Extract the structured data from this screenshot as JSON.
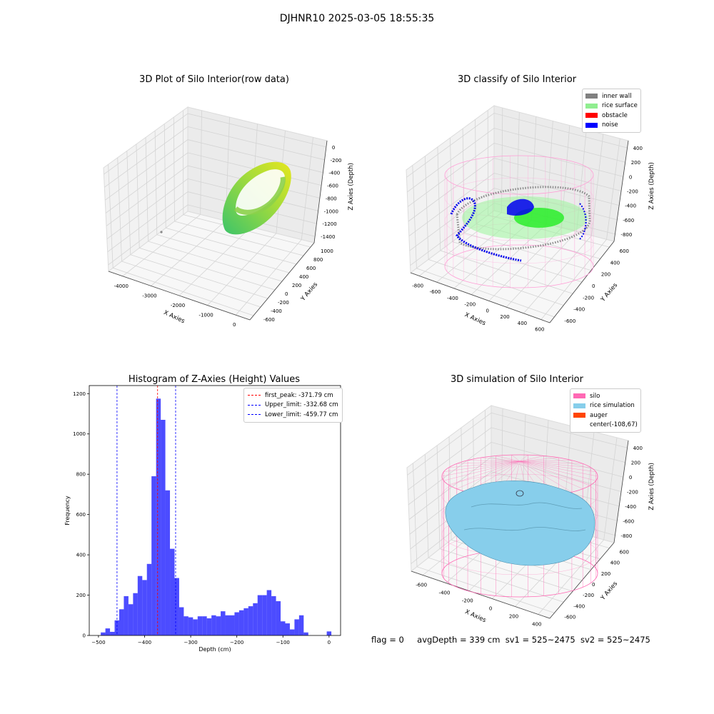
{
  "suptitle": "DJHNR10 2025-03-05 18:55:35",
  "footer": {
    "flag": "flag = 0",
    "avg_depth": "avgDepth = 339 cm",
    "sv1": "sv1 = 525~2475",
    "sv2": "sv2 = 525~2475"
  },
  "panels": {
    "raw": {
      "title": "3D Plot of Silo Interior(row data)",
      "xlabel": "X Axies",
      "ylabel": "Y Axies",
      "zlabel": "Z Axies (Depth)",
      "xticks": [
        "-4000",
        "-3000",
        "-2000",
        "-1000",
        "0"
      ],
      "yticks": [
        "-600",
        "-400",
        "-200",
        "0",
        "200",
        "400",
        "600",
        "800",
        "1000"
      ],
      "zticks": [
        "0",
        "-200",
        "-400",
        "-600",
        "-800",
        "-1000",
        "-1200",
        "-1400"
      ]
    },
    "classify": {
      "title": "3D classify of Silo Interior",
      "xlabel": "X Axies",
      "ylabel": "Y Axies",
      "zlabel": "Z Axies (Depth)",
      "xticks": [
        "-800",
        "-600",
        "-400",
        "-200",
        "0",
        "200",
        "400",
        "600"
      ],
      "yticks": [
        "-600",
        "-400",
        "-200",
        "0",
        "200",
        "400",
        "600"
      ],
      "zticks": [
        "400",
        "200",
        "0",
        "-200",
        "-400",
        "-600",
        "-800"
      ],
      "legend": [
        {
          "label": "inner wall",
          "color": "#808080"
        },
        {
          "label": "rice surface",
          "color": "#90ee90"
        },
        {
          "label": "obstacle",
          "color": "#ff0000"
        },
        {
          "label": "noise",
          "color": "#0000ff"
        }
      ]
    },
    "simulation": {
      "title": "3D simulation of Silo Interior",
      "xlabel": "X Axies",
      "ylabel": "Y Axies",
      "zlabel": "Z Axies (Depth)",
      "xticks": [
        "-600",
        "-400",
        "-200",
        "0",
        "200",
        "400"
      ],
      "yticks": [
        "-600",
        "-400",
        "-200",
        "0",
        "200",
        "400",
        "600"
      ],
      "zticks": [
        "400",
        "200",
        "0",
        "-200",
        "-400",
        "-600",
        "-800"
      ],
      "legend": [
        {
          "label": "silo",
          "color": "#ff69b4"
        },
        {
          "label": "rice simulation",
          "color": "#87ceeb"
        },
        {
          "label": "auger",
          "color": "#ff4500"
        },
        {
          "label": "center(-108,67)",
          "color": "#ffffff"
        }
      ]
    }
  },
  "chart_data": {
    "type": "bar",
    "title": "Histogram of Z-Axies (Height) Values",
    "xlabel": "Depth (cm)",
    "ylabel": "Frequency",
    "xlim": [
      -520,
      25
    ],
    "ylim": [
      0,
      1240
    ],
    "xticks": [
      -500,
      -400,
      -300,
      -200,
      -100,
      0
    ],
    "yticks": [
      0,
      200,
      400,
      600,
      800,
      1000,
      1200
    ],
    "bar_color": "#0000ff",
    "bin_width": 10,
    "bins": [
      {
        "x": -490,
        "v": 15
      },
      {
        "x": -480,
        "v": 35
      },
      {
        "x": -470,
        "v": 18
      },
      {
        "x": -460,
        "v": 75
      },
      {
        "x": -450,
        "v": 130
      },
      {
        "x": -440,
        "v": 195
      },
      {
        "x": -430,
        "v": 155
      },
      {
        "x": -420,
        "v": 210
      },
      {
        "x": -410,
        "v": 295
      },
      {
        "x": -400,
        "v": 275
      },
      {
        "x": -390,
        "v": 355
      },
      {
        "x": -380,
        "v": 790
      },
      {
        "x": -370,
        "v": 1175
      },
      {
        "x": -360,
        "v": 1070
      },
      {
        "x": -350,
        "v": 720
      },
      {
        "x": -340,
        "v": 430
      },
      {
        "x": -330,
        "v": 285
      },
      {
        "x": -320,
        "v": 140
      },
      {
        "x": -310,
        "v": 95
      },
      {
        "x": -300,
        "v": 90
      },
      {
        "x": -290,
        "v": 80
      },
      {
        "x": -280,
        "v": 95
      },
      {
        "x": -270,
        "v": 95
      },
      {
        "x": -260,
        "v": 85
      },
      {
        "x": -250,
        "v": 100
      },
      {
        "x": -240,
        "v": 95
      },
      {
        "x": -230,
        "v": 120
      },
      {
        "x": -220,
        "v": 100
      },
      {
        "x": -210,
        "v": 100
      },
      {
        "x": -200,
        "v": 115
      },
      {
        "x": -190,
        "v": 125
      },
      {
        "x": -180,
        "v": 135
      },
      {
        "x": -170,
        "v": 145
      },
      {
        "x": -160,
        "v": 160
      },
      {
        "x": -150,
        "v": 200
      },
      {
        "x": -140,
        "v": 200
      },
      {
        "x": -130,
        "v": 225
      },
      {
        "x": -120,
        "v": 195
      },
      {
        "x": -110,
        "v": 170
      },
      {
        "x": -100,
        "v": 70
      },
      {
        "x": -90,
        "v": 60
      },
      {
        "x": -80,
        "v": 30
      },
      {
        "x": -70,
        "v": 80
      },
      {
        "x": -60,
        "v": 100
      },
      {
        "x": -50,
        "v": 15
      },
      {
        "x": -40,
        "v": 0
      },
      {
        "x": -30,
        "v": 0
      },
      {
        "x": -20,
        "v": 0
      },
      {
        "x": -10,
        "v": 0
      },
      {
        "x": 0,
        "v": 20
      }
    ],
    "vlines": [
      {
        "label": "first_peak: -371.79 cm",
        "x": -371.79,
        "color": "#ff0000"
      },
      {
        "label": "Upper_limit: -332.68 cm",
        "x": -332.68,
        "color": "#0000ff"
      },
      {
        "label": "Lower_limit: -459.77 cm",
        "x": -459.77,
        "color": "#0000ff"
      }
    ],
    "legend_position": "upper right"
  }
}
